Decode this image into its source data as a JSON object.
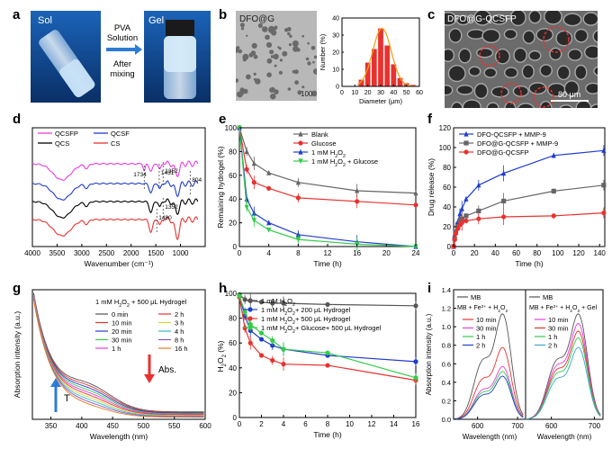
{
  "panels": {
    "a": {
      "letter": "a",
      "sol_label": "Sol",
      "gel_label": "Gel",
      "arrow_top": "PVA\nSolution",
      "arrow_bottom": "After\nmixing"
    },
    "b": {
      "letter": "b",
      "image_label": "DFO@G",
      "scale_label": "100",
      "chart_data": {
        "type": "bar",
        "categories": [
          "15",
          "20",
          "25",
          "30",
          "35",
          "40",
          "45",
          "50",
          "55"
        ],
        "values": [
          4,
          14,
          22,
          34,
          24,
          13,
          5,
          2,
          1
        ],
        "xlabel": "Diameter (μm)",
        "ylabel": "Number (%)",
        "xlim": [
          0,
          60
        ],
        "ylim": [
          0,
          40
        ],
        "xticks": [
          "0",
          "10",
          "20",
          "30",
          "40",
          "50",
          "60"
        ],
        "yticks": [
          "0",
          "10",
          "20",
          "30",
          "40"
        ],
        "bar_color": "#e8322f",
        "fit_color": "#f2a21c"
      }
    },
    "c": {
      "letter": "c",
      "image_label": "DFO@G-QCSFP",
      "scale_label": "80 μm"
    },
    "d": {
      "letter": "d",
      "chart_data": {
        "type": "line",
        "xlabel": "Wavenumber (cm⁻¹)",
        "xlim": [
          4000,
          500
        ],
        "xticks": [
          "4000",
          "3500",
          "3000",
          "2500",
          "2000",
          "1500",
          "1000"
        ],
        "legend": [
          "QCSFP",
          "QCSF",
          "QCS",
          "CS"
        ],
        "colors": [
          "#e83be0",
          "#1f3ccf",
          "#000000",
          "#e8322f"
        ],
        "annotations": [
          "1734",
          "1431",
          "1352",
          "804",
          "1352",
          "1480"
        ]
      }
    },
    "e": {
      "letter": "e",
      "chart_data": {
        "type": "line",
        "xlabel": "Time (h)",
        "ylabel": "Remaining hydrogel (%)",
        "xlim": [
          0,
          24
        ],
        "ylim": [
          0,
          100
        ],
        "xticks": [
          "0",
          "4",
          "8",
          "12",
          "16",
          "20",
          "24"
        ],
        "yticks": [
          "0",
          "20",
          "40",
          "60",
          "80",
          "100"
        ],
        "x": [
          0,
          1,
          2,
          4,
          8,
          16,
          24
        ],
        "series": [
          {
            "name": "Blank",
            "color": "#666666",
            "marker": "triangle",
            "values": [
              100,
              80,
              70,
              62,
              54,
              47,
              45
            ]
          },
          {
            "name": "Glucose",
            "color": "#e8322f",
            "marker": "circle",
            "values": [
              100,
              65,
              54,
              49,
              41,
              38,
              35
            ]
          },
          {
            "name_main": "1 mM H",
            "name_sub": "2",
            "name_main2": "O",
            "name_sub2": "2",
            "color": "#1f3ccf",
            "marker": "triangle",
            "values": [
              100,
              40,
              28,
              20,
              10,
              4,
              0
            ]
          },
          {
            "name_main": "1 mM H",
            "name_sub": "2",
            "name_main2": "O",
            "name_sub2": "2",
            "name_tail": " + Glucose",
            "color": "#33cc4a",
            "marker": "triangle-down",
            "values": [
              100,
              33,
              22,
              14,
              6,
              2,
              0
            ]
          }
        ]
      }
    },
    "f": {
      "letter": "f",
      "chart_data": {
        "type": "line",
        "xlabel": "Time (h)",
        "ylabel": "Drug release (%)",
        "xlim": [
          0,
          145
        ],
        "ylim": [
          0,
          120
        ],
        "xticks": [
          "0",
          "20",
          "40",
          "60",
          "80",
          "100",
          "120",
          "140"
        ],
        "yticks": [
          "0",
          "20",
          "40",
          "60",
          "80",
          "100",
          "120"
        ],
        "x": [
          0,
          1,
          2,
          4,
          6,
          8,
          12,
          24,
          48,
          96,
          144
        ],
        "series": [
          {
            "name": "DFO-QCSFP + MMP-9",
            "color": "#1f3ccf",
            "marker": "triangle",
            "values": [
              0,
              10,
              16,
              25,
              33,
              38,
              48,
              62,
              74,
              92,
              97
            ]
          },
          {
            "name": "DFO@G-QCSFP + MMP-9",
            "color": "#666666",
            "marker": "square",
            "values": [
              0,
              8,
              14,
              20,
              26,
              28,
              31,
              36,
              46,
              56,
              62
            ]
          },
          {
            "name": "DFO@G-QCSFP",
            "color": "#e8322f",
            "marker": "circle",
            "values": [
              0,
              7,
              13,
              18,
              22,
              24,
              26,
              28,
              30,
              31,
              34
            ]
          }
        ]
      }
    },
    "g": {
      "letter": "g",
      "chart_data": {
        "type": "line",
        "xlabel": "Wavelength (nm)",
        "ylabel": "Absorption intensity (a.u.)",
        "xlim": [
          320,
          600
        ],
        "xticks": [
          "350",
          "400",
          "450",
          "500",
          "550",
          "600"
        ],
        "legend_title_main": "1 mM H",
        "legend_title_sub": "2",
        "legend_title_main2": "O",
        "legend_title_sub2": "2",
        "legend_title_tail": " + 500 μL Hydrogel",
        "series_col1": [
          {
            "name": "0 min",
            "color": "#555555"
          },
          {
            "name": "10 min",
            "color": "#e8322f"
          },
          {
            "name": "20 min",
            "color": "#1f3ccf"
          },
          {
            "name": "30 min",
            "color": "#33cc4a"
          },
          {
            "name": "1 h",
            "color": "#e83be0"
          }
        ],
        "series_col2": [
          {
            "name": "2 h",
            "color": "#e8322f"
          },
          {
            "name": "3 h",
            "color": "#d4d433"
          },
          {
            "name": "4 h",
            "color": "#33bbcc"
          },
          {
            "name": "8 h",
            "color": "#8855cc"
          },
          {
            "name": "16 h",
            "color": "#e87a20"
          }
        ],
        "abs_label": "Abs.",
        "t_label": "T"
      }
    },
    "h": {
      "letter": "h",
      "chart_data": {
        "type": "line",
        "xlabel": "Time (h)",
        "ylabel_main": "H",
        "ylabel_sub": "2",
        "ylabel_main2": "O",
        "ylabel_sub2": "2",
        "ylabel_tail": " (%)",
        "xlim": [
          0,
          16
        ],
        "ylim": [
          0,
          100
        ],
        "xticks": [
          "0",
          "2",
          "4",
          "6",
          "8",
          "10",
          "12",
          "14",
          "16"
        ],
        "yticks": [
          "0",
          "20",
          "40",
          "60",
          "80",
          "100"
        ],
        "x": [
          0,
          0.5,
          1,
          2,
          3,
          4,
          8,
          16
        ],
        "series": [
          {
            "name_main": "1 mM H",
            "name_sub": "2",
            "name_main2": "O",
            "name_sub2": "2",
            "color": "#555555",
            "marker": "circle",
            "values": [
              99,
              95,
              94,
              93,
              92,
              92,
              91,
              90
            ]
          },
          {
            "name_main": "1 mM H",
            "name_sub": "2",
            "name_main2": "O",
            "name_sub2": "2",
            "name_tail": "+ 200 μL Hydrogel",
            "color": "#1f3ccf",
            "marker": "circle",
            "values": [
              98,
              82,
              70,
              63,
              58,
              55,
              50,
              45
            ]
          },
          {
            "name_main": "1 mM H",
            "name_sub": "2",
            "name_main2": "O",
            "name_sub2": "2",
            "name_tail": "+ 500 μL Hydrogel",
            "color": "#e8322f",
            "marker": "circle",
            "values": [
              97,
              72,
              60,
              50,
              46,
              43,
              42,
              30
            ]
          },
          {
            "name_main": "1 mM H",
            "name_sub": "2",
            "name_main2": "O",
            "name_sub2": "2",
            "name_tail": "+ Glucose+ 500 μL Hydrogel",
            "color": "#33cc4a",
            "marker": "circle",
            "values": [
              98,
              85,
              75,
              68,
              62,
              55,
              52,
              32
            ]
          }
        ]
      }
    },
    "i": {
      "letter": "i",
      "chart_data": {
        "type": "line",
        "xlabel": "Wavelength (nm)",
        "ylabel": "Absorption intensity (a.u.)",
        "ylim": [
          0,
          1.4
        ],
        "yticks": [
          "0.0",
          "0.2",
          "0.4",
          "0.6",
          "0.8",
          "1.0",
          "1.2",
          "1.4"
        ],
        "left": {
          "xticks": [
            "600",
            "700"
          ],
          "legend_mb": "MB",
          "legend_title_main": "MB + Fe",
          "legend_title_sup": "2+",
          "legend_title_mid": " + H",
          "legend_title_sub": "2",
          "legend_title_main2": "O",
          "legend_title_sub2": "2",
          "series": [
            {
              "name": "10 min",
              "color": "#e8322f"
            },
            {
              "name": "30 min",
              "color": "#e83be0"
            },
            {
              "name": "1 h",
              "color": "#33cc4a"
            },
            {
              "name": "2 h",
              "color": "#1f3ccf"
            }
          ]
        },
        "right": {
          "xticks": [
            "600",
            "700"
          ],
          "legend_mb": "MB",
          "legend_title_main": "MB + Fe",
          "legend_title_sup": "2+",
          "legend_title_mid": " + H",
          "legend_title_sub": "2",
          "legend_title_main2": "O",
          "legend_title_sub2": "2",
          "legend_title_tail": " + Gel",
          "series": [
            {
              "name": "10 min",
              "color": "#e83be0"
            },
            {
              "name": "30 min",
              "color": "#e8322f"
            },
            {
              "name": "1 h",
              "color": "#33cc4a"
            },
            {
              "name": "2 h",
              "color": "#33aacc"
            }
          ]
        }
      }
    }
  }
}
